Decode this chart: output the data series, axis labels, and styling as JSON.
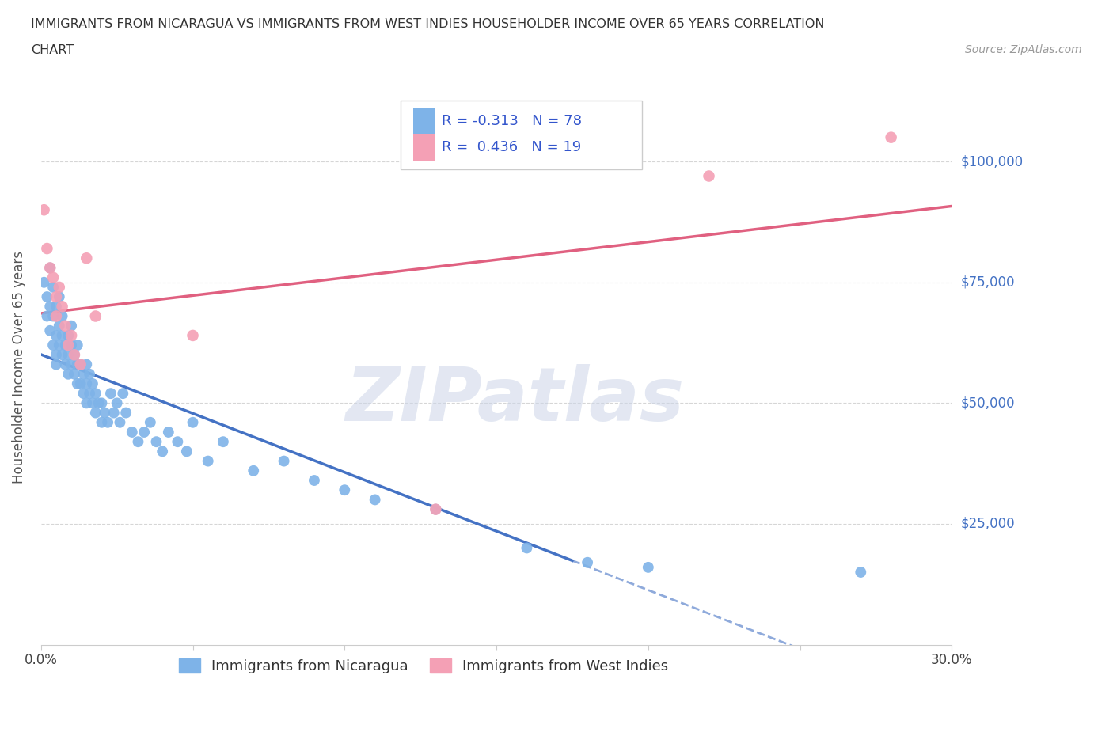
{
  "title_line1": "IMMIGRANTS FROM NICARAGUA VS IMMIGRANTS FROM WEST INDIES HOUSEHOLDER INCOME OVER 65 YEARS CORRELATION",
  "title_line2": "CHART",
  "source": "Source: ZipAtlas.com",
  "ylabel": "Householder Income Over 65 years",
  "xlim": [
    0.0,
    0.3
  ],
  "ylim": [
    0,
    115000
  ],
  "xticks": [
    0.0,
    0.05,
    0.1,
    0.15,
    0.2,
    0.25,
    0.3
  ],
  "ytick_positions": [
    25000,
    50000,
    75000,
    100000
  ],
  "ytick_labels": [
    "$25,000",
    "$50,000",
    "$75,000",
    "$100,000"
  ],
  "nicaragua_color": "#7eb3e8",
  "nicaragua_line_color": "#4472c4",
  "west_indies_color": "#f4a0b5",
  "west_indies_line_color": "#e06080",
  "R_nicaragua": -0.313,
  "N_nicaragua": 78,
  "R_west_indies": 0.436,
  "N_west_indies": 19,
  "legend_label_1": "Immigrants from Nicaragua",
  "legend_label_2": "Immigrants from West Indies",
  "watermark": "ZIPatlas",
  "nicaragua_x": [
    0.001,
    0.002,
    0.002,
    0.003,
    0.003,
    0.003,
    0.004,
    0.004,
    0.004,
    0.005,
    0.005,
    0.005,
    0.005,
    0.006,
    0.006,
    0.006,
    0.007,
    0.007,
    0.007,
    0.008,
    0.008,
    0.009,
    0.009,
    0.009,
    0.01,
    0.01,
    0.01,
    0.011,
    0.011,
    0.012,
    0.012,
    0.012,
    0.013,
    0.013,
    0.014,
    0.014,
    0.015,
    0.015,
    0.015,
    0.016,
    0.016,
    0.017,
    0.017,
    0.018,
    0.018,
    0.019,
    0.02,
    0.02,
    0.021,
    0.022,
    0.023,
    0.024,
    0.025,
    0.026,
    0.027,
    0.028,
    0.03,
    0.032,
    0.034,
    0.036,
    0.038,
    0.04,
    0.042,
    0.045,
    0.048,
    0.05,
    0.055,
    0.06,
    0.07,
    0.08,
    0.09,
    0.1,
    0.11,
    0.13,
    0.16,
    0.18,
    0.2,
    0.27
  ],
  "nicaragua_y": [
    75000,
    68000,
    72000,
    65000,
    70000,
    78000,
    62000,
    68000,
    74000,
    60000,
    64000,
    70000,
    58000,
    62000,
    66000,
    72000,
    60000,
    64000,
    68000,
    58000,
    62000,
    56000,
    60000,
    64000,
    58000,
    62000,
    66000,
    56000,
    60000,
    54000,
    58000,
    62000,
    54000,
    58000,
    52000,
    56000,
    50000,
    54000,
    58000,
    52000,
    56000,
    50000,
    54000,
    48000,
    52000,
    50000,
    46000,
    50000,
    48000,
    46000,
    52000,
    48000,
    50000,
    46000,
    52000,
    48000,
    44000,
    42000,
    44000,
    46000,
    42000,
    40000,
    44000,
    42000,
    40000,
    46000,
    38000,
    42000,
    36000,
    38000,
    34000,
    32000,
    30000,
    28000,
    20000,
    17000,
    16000,
    15000
  ],
  "west_indies_x": [
    0.001,
    0.002,
    0.003,
    0.004,
    0.005,
    0.005,
    0.006,
    0.007,
    0.008,
    0.009,
    0.01,
    0.011,
    0.013,
    0.015,
    0.018,
    0.05,
    0.13,
    0.22,
    0.28
  ],
  "west_indies_y": [
    90000,
    82000,
    78000,
    76000,
    72000,
    68000,
    74000,
    70000,
    66000,
    62000,
    64000,
    60000,
    58000,
    80000,
    68000,
    64000,
    28000,
    97000,
    105000
  ]
}
